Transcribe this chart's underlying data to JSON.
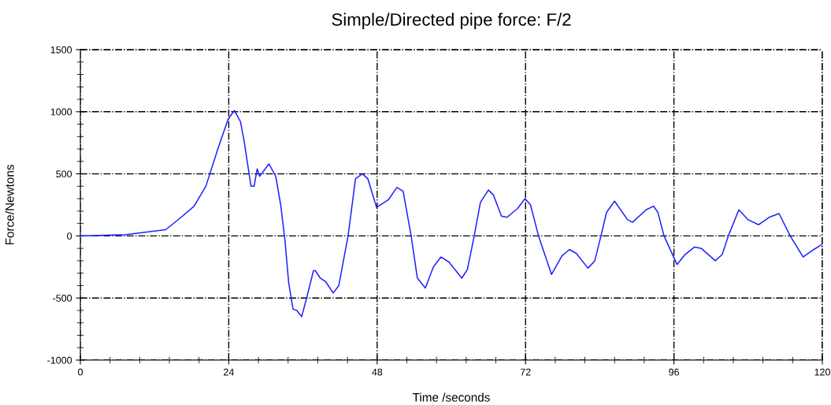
{
  "chart_data": {
    "type": "line",
    "title": "Simple/Directed pipe force: F/2",
    "xlabel": "Time /seconds",
    "ylabel": "Force/Newtons",
    "xlim": [
      0,
      120
    ],
    "xticks": [
      0,
      24,
      48,
      72,
      96,
      120
    ],
    "ylim": [
      -1000,
      1500
    ],
    "yticks": [
      -1000,
      -500,
      0,
      500,
      1000,
      1500
    ],
    "grid": true,
    "line_style": "solid",
    "marker": "none",
    "series": [
      {
        "color": "#2020ff",
        "x": [
          0,
          7.4,
          13.8,
          16.3,
          18.4,
          20.3,
          22.3,
          23.9,
          24.9,
          25.9,
          26.5,
          27.6,
          28.1,
          28.6,
          29.0,
          30.5,
          31.6,
          32.4,
          33.1,
          33.7,
          34.4,
          35.0,
          35.8,
          36.7,
          37.7,
          38.0,
          38.8,
          39.7,
          40.9,
          41.8,
          43.3,
          44.5,
          45.6,
          46.5,
          47.9,
          49.8,
          51.2,
          52.2,
          53.5,
          54.5,
          55.8,
          57.1,
          58.3,
          59.6,
          61.7,
          62.6,
          63.7,
          64.7,
          66.0,
          66.8,
          68.1,
          69.0,
          70.7,
          71.9,
          72.8,
          74.1,
          76.2,
          77.9,
          79.1,
          80.2,
          82.1,
          83.2,
          84.2,
          85.1,
          86.4,
          88.5,
          89.3,
          91.5,
          92.7,
          93.4,
          94.4,
          96.5,
          97.8,
          99.3,
          100.4,
          102.7,
          103.8,
          104.8,
          106.5,
          108.0,
          109.7,
          111.4,
          113.0,
          114.8,
          116.9,
          118.6,
          119.9
        ],
        "values": [
          0,
          10,
          50,
          150,
          240,
          400,
          710,
          940,
          1010,
          920,
          760,
          400,
          400,
          540,
          480,
          580,
          480,
          250,
          -40,
          -380,
          -590,
          -600,
          -650,
          -480,
          -280,
          -280,
          -340,
          -370,
          -460,
          -400,
          0,
          460,
          500,
          460,
          230,
          290,
          390,
          360,
          0,
          -340,
          -420,
          -250,
          -170,
          -210,
          -340,
          -270,
          0,
          270,
          370,
          330,
          160,
          150,
          220,
          300,
          250,
          0,
          -310,
          -160,
          -110,
          -140,
          -260,
          -200,
          0,
          190,
          280,
          130,
          110,
          210,
          240,
          190,
          0,
          -230,
          -150,
          -90,
          -100,
          -200,
          -150,
          0,
          210,
          130,
          90,
          150,
          180,
          0,
          -170,
          -110,
          -70
        ]
      }
    ]
  }
}
